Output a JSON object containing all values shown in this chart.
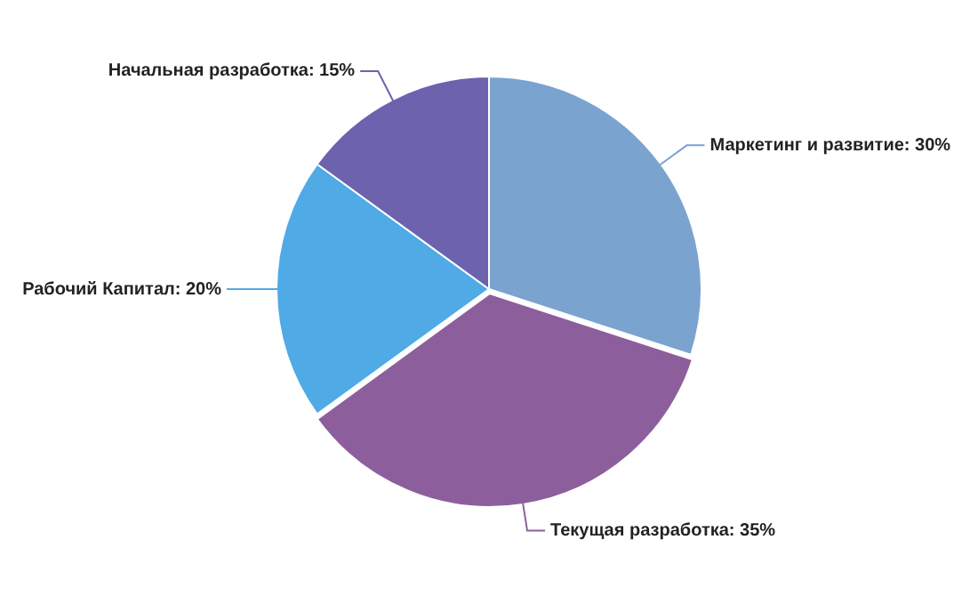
{
  "chart_data": {
    "type": "pie",
    "categories": [
      "Маркетинг и развитие",
      "Текущая разработка",
      "Рабочий Капитал",
      "Начальная разработка"
    ],
    "values": [
      30,
      35,
      20,
      15
    ],
    "colors": [
      "#7ba3cf",
      "#8c5f9c",
      "#4faae6",
      "#6c62ae"
    ],
    "value_labels": [
      "30%",
      "35%",
      "20%",
      "15%"
    ],
    "legend": false
  }
}
